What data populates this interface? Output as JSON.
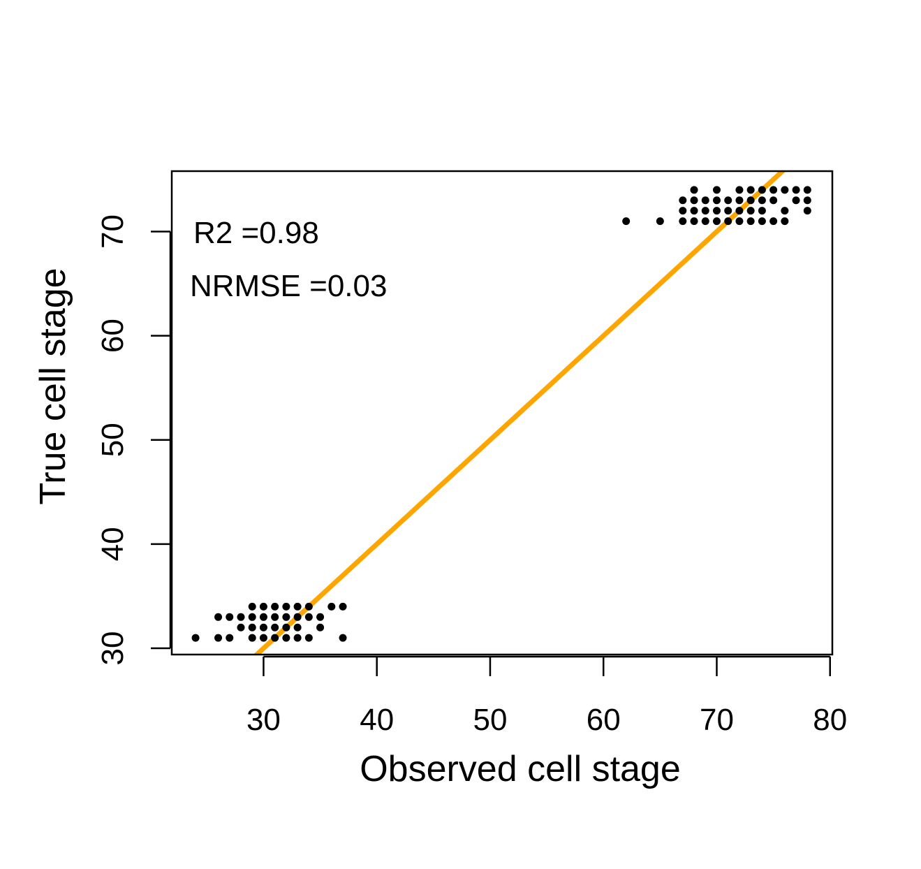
{
  "chart_data": {
    "type": "scatter",
    "title": "",
    "xlabel": "Observed cell stage",
    "ylabel": "True cell stage",
    "xlim": [
      21.9,
      80.2
    ],
    "ylim": [
      29.4,
      75.8
    ],
    "x_ticks": [
      30,
      40,
      50,
      60,
      70,
      80
    ],
    "y_ticks": [
      30,
      40,
      50,
      60,
      70
    ],
    "grid": false,
    "annotations": [
      "R2 =0.98",
      "NRMSE =0.03"
    ],
    "fit_line": {
      "color": "#FFA500",
      "slope": 1,
      "intercept": 0
    },
    "points": [
      [
        24,
        31
      ],
      [
        26,
        31
      ],
      [
        27,
        31
      ],
      [
        29,
        31
      ],
      [
        30,
        31
      ],
      [
        31,
        31
      ],
      [
        32,
        31
      ],
      [
        33,
        31
      ],
      [
        34,
        31
      ],
      [
        37,
        31
      ],
      [
        28,
        32
      ],
      [
        29,
        32
      ],
      [
        30,
        32
      ],
      [
        31,
        32
      ],
      [
        32,
        32
      ],
      [
        33,
        32
      ],
      [
        35,
        32
      ],
      [
        26,
        33
      ],
      [
        27,
        33
      ],
      [
        28,
        33
      ],
      [
        29,
        33
      ],
      [
        30,
        33
      ],
      [
        31,
        33
      ],
      [
        32,
        33
      ],
      [
        33,
        33
      ],
      [
        34,
        33
      ],
      [
        35,
        33
      ],
      [
        29,
        34
      ],
      [
        30,
        34
      ],
      [
        31,
        34
      ],
      [
        32,
        34
      ],
      [
        33,
        34
      ],
      [
        34,
        34
      ],
      [
        36,
        34
      ],
      [
        37,
        34
      ],
      [
        62,
        71
      ],
      [
        65,
        71
      ],
      [
        67,
        71
      ],
      [
        68,
        71
      ],
      [
        69,
        71
      ],
      [
        70,
        71
      ],
      [
        71,
        71
      ],
      [
        72,
        71
      ],
      [
        73,
        71
      ],
      [
        74,
        71
      ],
      [
        75,
        71
      ],
      [
        76,
        71
      ],
      [
        67,
        72
      ],
      [
        68,
        72
      ],
      [
        69,
        72
      ],
      [
        70,
        72
      ],
      [
        71,
        72
      ],
      [
        72,
        72
      ],
      [
        73,
        72
      ],
      [
        74,
        72
      ],
      [
        76,
        72
      ],
      [
        78,
        72
      ],
      [
        67,
        73
      ],
      [
        68,
        73
      ],
      [
        69,
        73
      ],
      [
        70,
        73
      ],
      [
        71,
        73
      ],
      [
        72,
        73
      ],
      [
        73,
        73
      ],
      [
        74,
        73
      ],
      [
        75,
        73
      ],
      [
        77,
        73
      ],
      [
        78,
        73
      ],
      [
        68,
        74
      ],
      [
        70,
        74
      ],
      [
        72,
        74
      ],
      [
        73,
        74
      ],
      [
        74,
        74
      ],
      [
        75,
        74
      ],
      [
        76,
        74
      ],
      [
        77,
        74
      ],
      [
        78,
        74
      ]
    ]
  }
}
